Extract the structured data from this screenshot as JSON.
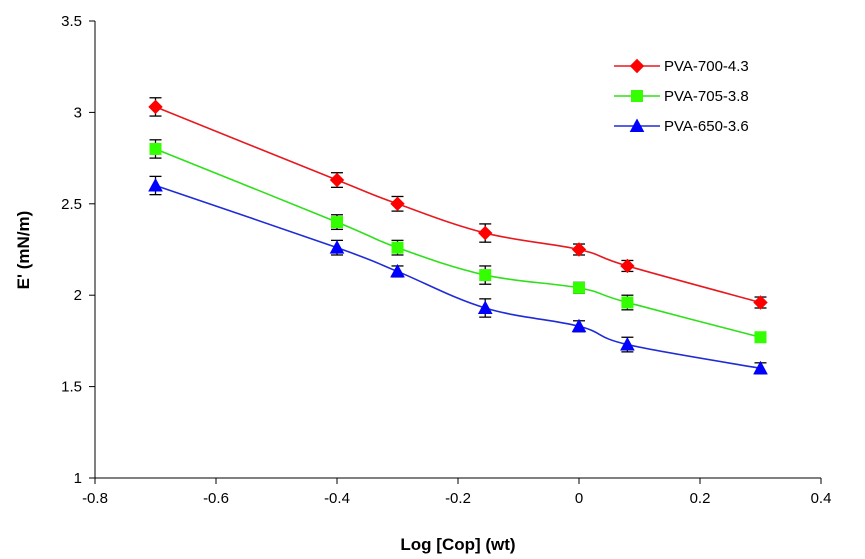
{
  "chart_data": {
    "type": "line",
    "xlabel": "Log [Cop] (wt)",
    "ylabel": "E' (mN/m)",
    "xlim": [
      -0.8,
      0.4
    ],
    "ylim": [
      1,
      3.5
    ],
    "x_ticks": [
      "-0.8",
      "-0.6",
      "-0.4",
      "-0.2",
      "0",
      "0.2",
      "0.4"
    ],
    "y_ticks": [
      "1",
      "1.5",
      "2",
      "2.5",
      "3",
      "3.5"
    ],
    "grid": false,
    "legend_position": "top-right",
    "x": [
      -0.7,
      -0.4,
      -0.3,
      -0.155,
      0,
      0.08,
      0.3
    ],
    "series": [
      {
        "name": "PVA-700-4.3",
        "color": "#ff0000",
        "line_color": "#e8191e",
        "marker": "diamond",
        "values": [
          3.03,
          2.63,
          2.5,
          2.34,
          2.25,
          2.16,
          1.96
        ],
        "errors": [
          0.05,
          0.04,
          0.04,
          0.05,
          0.03,
          0.03,
          0.03
        ]
      },
      {
        "name": "PVA-705-3.8",
        "color": "#33ff00",
        "line_color": "#2ee01a",
        "marker": "square",
        "values": [
          2.8,
          2.4,
          2.26,
          2.11,
          2.04,
          1.96,
          1.77
        ],
        "errors": [
          0.05,
          0.04,
          0.04,
          0.05,
          0.03,
          0.04,
          0.02
        ]
      },
      {
        "name": "PVA-650-3.6",
        "color": "#0000ff",
        "line_color": "#1f2cd6",
        "marker": "triangle",
        "values": [
          2.6,
          2.26,
          2.13,
          1.93,
          1.83,
          1.73,
          1.6
        ],
        "errors": [
          0.05,
          0.04,
          0.03,
          0.05,
          0.03,
          0.04,
          0.03
        ]
      }
    ]
  }
}
